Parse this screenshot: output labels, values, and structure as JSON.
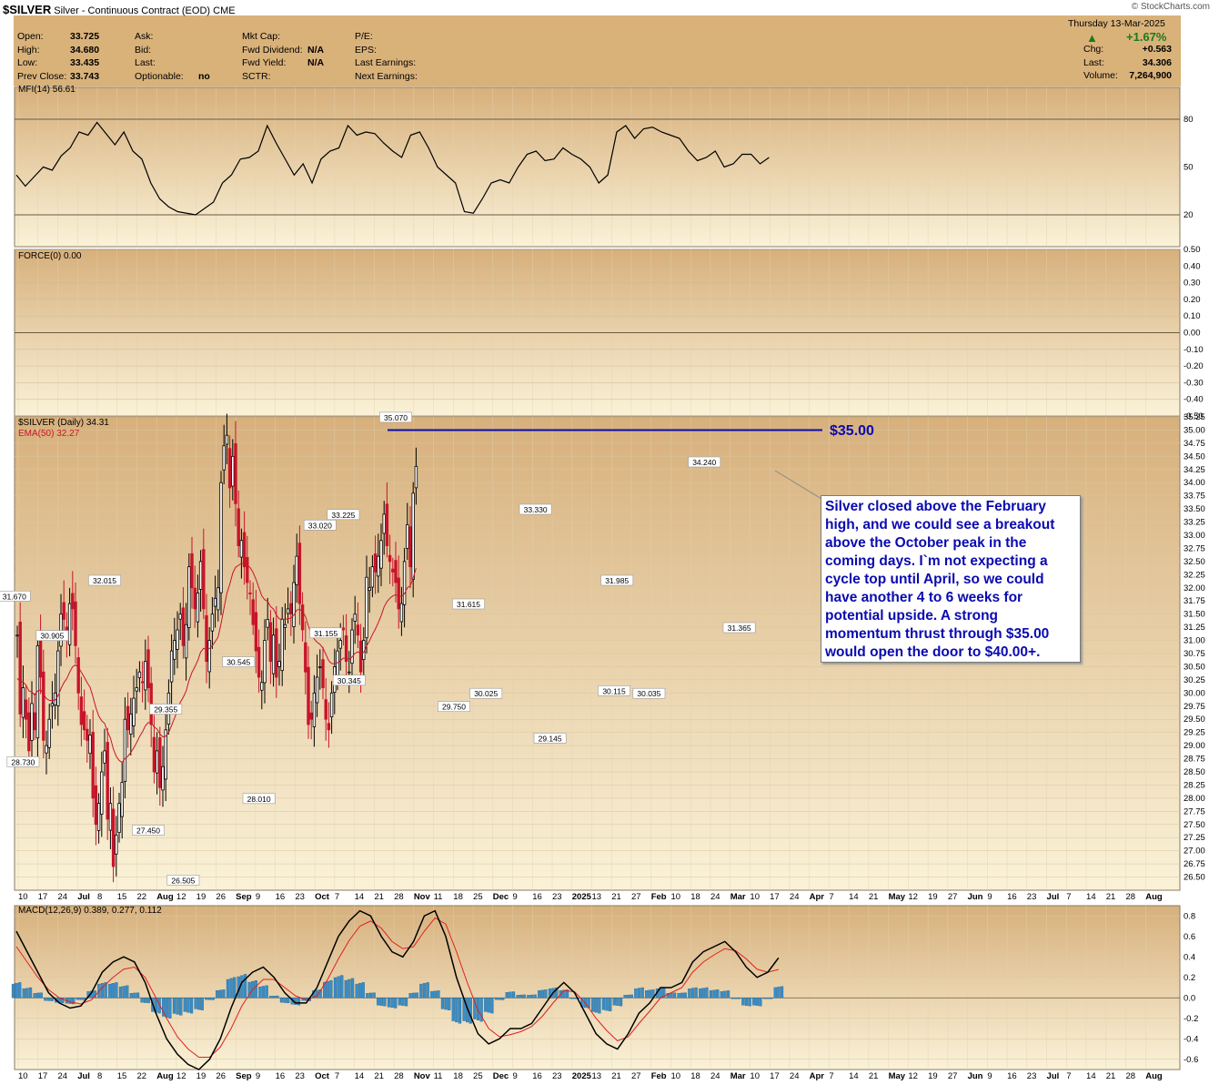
{
  "header": {
    "symbol": "$SILVER",
    "description": "Silver - Continuous Contract (EOD)",
    "exchange": "CME",
    "brand": "© StockCharts.com",
    "date_line": "Thursday  13-Mar-2025",
    "change_pct": "+1.67%",
    "col1": [
      {
        "label": "Open:",
        "value": "33.725"
      },
      {
        "label": "High:",
        "value": "34.680"
      },
      {
        "label": "Low:",
        "value": "33.435"
      },
      {
        "label": "Prev Close:",
        "value": "33.743"
      }
    ],
    "col2": [
      {
        "label": "Ask:",
        "value": ""
      },
      {
        "label": "Bid:",
        "value": ""
      },
      {
        "label": "Last:",
        "value": ""
      },
      {
        "label": "Optionable:",
        "value": "no"
      }
    ],
    "col3": [
      {
        "label": "Mkt Cap:",
        "value": ""
      },
      {
        "label": "Fwd Dividend:",
        "value": "N/A"
      },
      {
        "label": "Fwd Yield:",
        "value": "N/A"
      },
      {
        "label": "SCTR:",
        "value": ""
      }
    ],
    "col4": [
      {
        "label": "P/E:",
        "value": ""
      },
      {
        "label": "EPS:",
        "value": ""
      },
      {
        "label": "Last Earnings:",
        "value": ""
      },
      {
        "label": "Next Earnings:",
        "value": ""
      }
    ],
    "col5": [
      {
        "label": "Chg:",
        "value": "+0.563"
      },
      {
        "label": "Last:",
        "value": "34.306"
      },
      {
        "label": "Volume:",
        "value": "7,264,900"
      }
    ]
  },
  "colors": {
    "panel_bg": "#f6e6b3",
    "outer_bg": "#d9b27a",
    "bull": "#000000",
    "bear": "#c8142a",
    "ema": "#c8142a",
    "level_line": "#0a0ab0",
    "hist": "#3a8cc4",
    "macd": "#000000",
    "signal": "#e02020"
  },
  "annotation": {
    "level_label": "$35.00",
    "text": "Silver closed above the February high, and we could see a breakout above the October peak in the coming days. I`m not expecting a cycle top until April, so we could have another 4 to 6 weeks for potential upside. A strong momentum thrust through $35.00 would open the door to $40.00+."
  },
  "chart_data": [
    {
      "type": "line",
      "name": "MFI(14)",
      "label": "MFI(14) 56.61",
      "ylim": [
        0,
        100
      ],
      "reference_lines": [
        20,
        80
      ],
      "yticks": [
        80,
        50,
        20
      ],
      "values": [
        45,
        38,
        44,
        50,
        48,
        57,
        62,
        72,
        70,
        78,
        71,
        64,
        72,
        60,
        55,
        40,
        30,
        25,
        22,
        21,
        20,
        24,
        28,
        40,
        45,
        55,
        56,
        60,
        76,
        65,
        55,
        45,
        52,
        40,
        55,
        60,
        62,
        76,
        70,
        72,
        71,
        65,
        60,
        56,
        70,
        72,
        62,
        50,
        45,
        40,
        22,
        21,
        30,
        40,
        42,
        40,
        50,
        58,
        60,
        54,
        55,
        62,
        58,
        55,
        50,
        40,
        45,
        72,
        76,
        68,
        74,
        75,
        72,
        70,
        68,
        60,
        54,
        56,
        60,
        50,
        52,
        58,
        58,
        52,
        56
      ],
      "x_start": 18,
      "x_step": 9.85
    },
    {
      "type": "line",
      "name": "FORCE(0)",
      "label": "FORCE(0) 0.00",
      "ylim": [
        -0.5,
        0.5
      ],
      "yticks": [
        0.5,
        0.4,
        0.3,
        0.2,
        0.1,
        0.0,
        -0.1,
        -0.2,
        -0.3,
        -0.4,
        -0.5
      ],
      "values": [
        0
      ]
    },
    {
      "type": "candlestick",
      "name": "$SILVER (Daily)",
      "label": "$SILVER (Daily) 34.31",
      "overlay_label": "EMA(50) 32.27",
      "ylim": [
        26.25,
        35.25
      ],
      "yticks": [
        35.25,
        35.0,
        34.75,
        34.5,
        34.25,
        34.0,
        33.75,
        33.5,
        33.25,
        33.0,
        32.75,
        32.5,
        32.25,
        32.0,
        31.75,
        31.5,
        31.25,
        31.0,
        30.75,
        30.5,
        30.25,
        30.0,
        29.75,
        29.5,
        29.25,
        29.0,
        28.75,
        28.5,
        28.25,
        28.0,
        27.75,
        27.5,
        27.25,
        27.0,
        26.75,
        26.5
      ],
      "level": 35.0,
      "closes": [
        31.1,
        29.6,
        30.1,
        29.5,
        28.9,
        29.8,
        29.3,
        30.9,
        30.3,
        29.1,
        29.0,
        29.5,
        29.8,
        30.0,
        30.8,
        31.5,
        31.4,
        31.1,
        31.7,
        31.6,
        30.9,
        30.0,
        29.4,
        29.3,
        29.1,
        29.2,
        28.0,
        27.5,
        27.9,
        28.5,
        28.9,
        27.6,
        27.9,
        26.7,
        27.3,
        27.9,
        28.3,
        29.5,
        29.3,
        29.6,
        29.9,
        30.1,
        30.4,
        30.2,
        30.6,
        30.1,
        29.4,
        28.5,
        28.9,
        28.2,
        28.6,
        29.3,
        30.0,
        30.8,
        31.0,
        31.2,
        31.5,
        30.9,
        31.3,
        32.4,
        32.0,
        31.6,
        31.9,
        32.5,
        31.6,
        30.6,
        31.0,
        31.5,
        31.8,
        32.0,
        34.0,
        34.7,
        34.9,
        33.9,
        34.5,
        33.6,
        32.8,
        32.9,
        32.4,
        32.1,
        31.9,
        31.3,
        30.8,
        30.3,
        30.2,
        31.0,
        31.4,
        30.6,
        31.1,
        30.3,
        30.6,
        31.4,
        31.3,
        31.6,
        31.5,
        32.1,
        32.6,
        31.7,
        31.2,
        30.4,
        29.4,
        29.5,
        30.0,
        30.3,
        30.5,
        30.1,
        29.5,
        29.3,
        30.0,
        30.5,
        30.8,
        31.0,
        31.2,
        30.6,
        30.4,
        31.2,
        31.5,
        31.1,
        30.4,
        31.0,
        32.2,
        32.0,
        32.4,
        32.3,
        32.6,
        32.9,
        33.4,
        32.8,
        32.5,
        32.3,
        32.1,
        31.6,
        31.7,
        32.5,
        33.2,
        32.4,
        33.8,
        34.31
      ],
      "x_start": 19,
      "x_step": 3.2
    },
    {
      "type": "line",
      "name": "MACD(12,26,9)",
      "label": "MACD(12,26,9) 0.389, 0.277, 0.112",
      "ylim": [
        -0.7,
        0.9
      ],
      "yticks": [
        0.8,
        0.6,
        0.4,
        0.2,
        0.0,
        -0.2,
        -0.4,
        -0.6
      ],
      "macd": [
        0.65,
        0.45,
        0.25,
        0.05,
        -0.05,
        -0.1,
        -0.08,
        0.05,
        0.25,
        0.35,
        0.4,
        0.35,
        0.15,
        -0.15,
        -0.4,
        -0.55,
        -0.65,
        -0.7,
        -0.6,
        -0.4,
        -0.1,
        0.15,
        0.25,
        0.3,
        0.2,
        0.05,
        -0.05,
        -0.05,
        0.1,
        0.35,
        0.6,
        0.75,
        0.85,
        0.8,
        0.6,
        0.45,
        0.4,
        0.55,
        0.8,
        0.85,
        0.6,
        0.2,
        -0.1,
        -0.35,
        -0.45,
        -0.4,
        -0.3,
        -0.3,
        -0.25,
        -0.1,
        0.05,
        0.15,
        0.05,
        -0.15,
        -0.35,
        -0.45,
        -0.5,
        -0.35,
        -0.15,
        -0.05,
        0.1,
        0.1,
        0.15,
        0.35,
        0.45,
        0.5,
        0.55,
        0.45,
        0.3,
        0.2,
        0.25,
        0.39
      ],
      "signal": [
        0.5,
        0.35,
        0.2,
        0.08,
        0.0,
        -0.04,
        -0.06,
        -0.02,
        0.1,
        0.2,
        0.28,
        0.3,
        0.2,
        0.0,
        -0.2,
        -0.38,
        -0.5,
        -0.58,
        -0.58,
        -0.48,
        -0.3,
        -0.08,
        0.08,
        0.18,
        0.18,
        0.1,
        0.02,
        -0.02,
        0.02,
        0.18,
        0.38,
        0.56,
        0.7,
        0.75,
        0.68,
        0.55,
        0.48,
        0.5,
        0.65,
        0.78,
        0.72,
        0.45,
        0.15,
        -0.12,
        -0.3,
        -0.38,
        -0.36,
        -0.33,
        -0.28,
        -0.18,
        -0.05,
        0.07,
        0.06,
        -0.05,
        -0.2,
        -0.32,
        -0.42,
        -0.38,
        -0.25,
        -0.13,
        0.0,
        0.05,
        0.1,
        0.25,
        0.35,
        0.42,
        0.48,
        0.46,
        0.38,
        0.28,
        0.25,
        0.277
      ],
      "hist": [
        0.15,
        0.1,
        0.05,
        -0.03,
        -0.05,
        -0.06,
        -0.02,
        0.07,
        0.15,
        0.15,
        0.12,
        0.05,
        -0.05,
        -0.15,
        -0.2,
        -0.17,
        -0.15,
        -0.12,
        -0.02,
        0.08,
        0.2,
        0.23,
        0.17,
        0.12,
        0.02,
        -0.05,
        -0.07,
        -0.03,
        0.08,
        0.17,
        0.22,
        0.19,
        0.15,
        0.05,
        -0.08,
        -0.1,
        -0.08,
        0.05,
        0.15,
        0.07,
        -0.12,
        -0.25,
        -0.25,
        -0.23,
        -0.15,
        -0.02,
        0.06,
        0.03,
        0.03,
        0.08,
        0.1,
        0.08,
        -0.01,
        -0.1,
        -0.15,
        -0.13,
        -0.08,
        0.03,
        0.1,
        0.08,
        0.1,
        0.05,
        0.05,
        0.1,
        0.1,
        0.08,
        0.07,
        -0.01,
        -0.08,
        -0.08,
        0.0,
        0.112
      ],
      "x_start": 18,
      "x_step": 11.8
    }
  ],
  "price_labels": [
    {
      "text": "35.070",
      "v": 35.2,
      "xi": 130
    },
    {
      "text": "34.240",
      "v": 34.35,
      "xi": 236
    },
    {
      "text": "33.330",
      "v": 33.45,
      "xi": 178
    },
    {
      "text": "33.225",
      "v": 33.35,
      "xi": 112
    },
    {
      "text": "33.020",
      "v": 33.15,
      "xi": 104
    },
    {
      "text": "32.015",
      "v": 32.1,
      "xi": 30
    },
    {
      "text": "31.985",
      "v": 32.1,
      "xi": 206
    },
    {
      "text": "31.670",
      "v": 31.8,
      "xi": -1
    },
    {
      "text": "31.615",
      "v": 31.65,
      "xi": 155
    },
    {
      "text": "31.365",
      "v": 31.2,
      "xi": 248
    },
    {
      "text": "31.155",
      "v": 31.1,
      "xi": 106
    },
    {
      "text": "30.905",
      "v": 31.05,
      "xi": 12
    },
    {
      "text": "30.545",
      "v": 30.55,
      "xi": 76
    },
    {
      "text": "30.345",
      "v": 30.2,
      "xi": 114
    },
    {
      "text": "30.115",
      "v": 30.0,
      "xi": 205
    },
    {
      "text": "30.035",
      "v": 29.95,
      "xi": 217
    },
    {
      "text": "30.025",
      "v": 29.95,
      "xi": 161
    },
    {
      "text": "29.750",
      "v": 29.7,
      "xi": 150
    },
    {
      "text": "29.355",
      "v": 29.65,
      "xi": 51
    },
    {
      "text": "29.145",
      "v": 29.1,
      "xi": 183
    },
    {
      "text": "28.730",
      "v": 28.65,
      "xi": 2
    },
    {
      "text": "28.010",
      "v": 27.95,
      "xi": 83
    },
    {
      "text": "27.450",
      "v": 27.35,
      "xi": 45
    },
    {
      "text": "26.505",
      "v": 26.4,
      "xi": 57
    }
  ],
  "x_axis": {
    "labels": [
      "10",
      "17",
      "24",
      "Jul",
      "8",
      "15",
      "22",
      "Aug",
      "12",
      "19",
      "26",
      "Sep",
      "9",
      "16",
      "23",
      "Oct",
      "7",
      "14",
      "21",
      "28",
      "Nov",
      "11",
      "18",
      "25",
      "Dec",
      "9",
      "16",
      "23",
      "2025",
      "13",
      "21",
      "27",
      "Feb",
      "10",
      "18",
      "24",
      "Mar",
      "10",
      "17",
      "24",
      "Apr",
      "7",
      "14",
      "21",
      "May",
      "12",
      "19",
      "27",
      "Jun",
      "9",
      "16",
      "23",
      "Jul",
      "7",
      "14",
      "21",
      "28",
      "Aug"
    ],
    "bold": [
      "Jul",
      "Aug",
      "Sep",
      "Oct",
      "Nov",
      "Dec",
      "2025",
      "Feb",
      "Mar",
      "Apr",
      "May",
      "Jun",
      "Aug"
    ]
  }
}
